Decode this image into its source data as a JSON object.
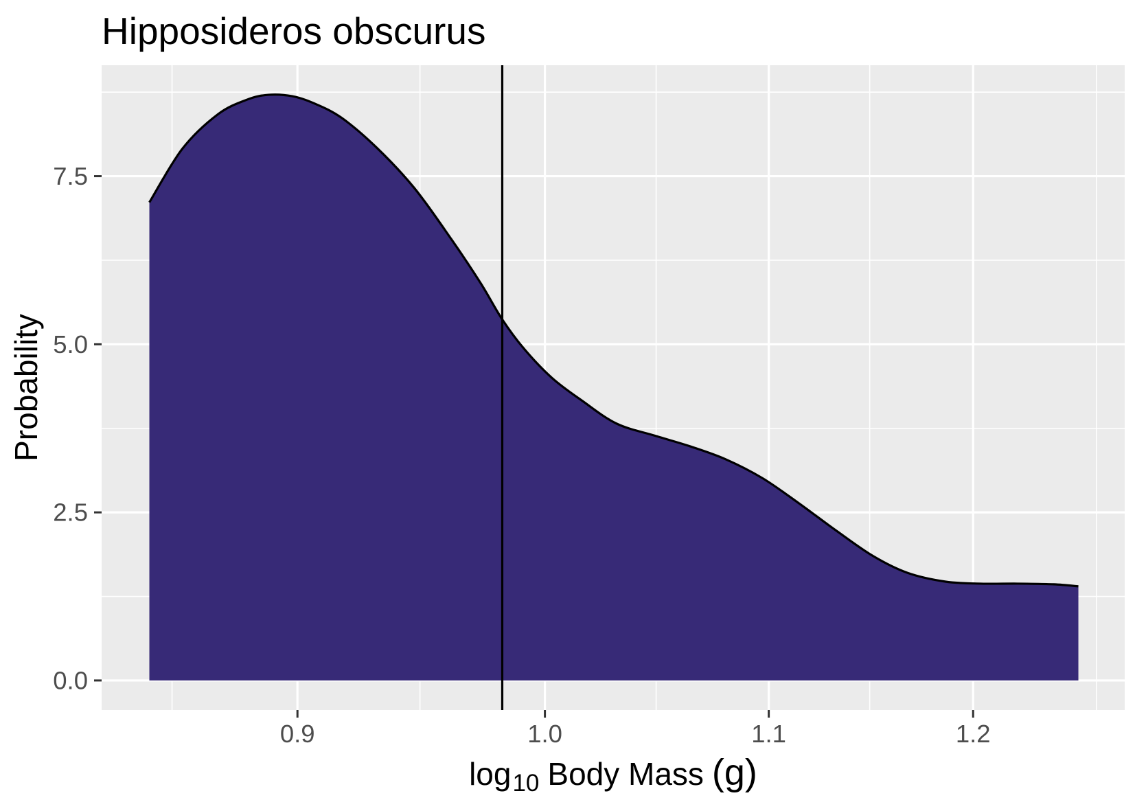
{
  "colors": {
    "background": "#FFFFFF",
    "panel": "#EBEBEB",
    "grid": "#FFFFFF",
    "area_fill": "#372A77",
    "curve": "#000000",
    "reference_line": "#000000",
    "tick_label": "#4D4D4D",
    "tick_mark": "#333333"
  },
  "chart_data": {
    "type": "area",
    "title": "Hipposideros obscurus",
    "xlabel": {
      "main": "log",
      "sub": "10",
      "name": "Body Mass",
      "unit": "(g)"
    },
    "ylabel": "Probability",
    "x_scale": "log10",
    "xlim": [
      0.828,
      1.28
    ],
    "ylim": [
      -0.44,
      9.15
    ],
    "x_ticks": [
      0.9,
      1.0,
      1.1,
      1.2
    ],
    "x_tick_labels": [
      "0.9",
      "1.0",
      "1.1",
      "1.2"
    ],
    "y_ticks": [
      0,
      2.5,
      5.0,
      7.5
    ],
    "y_tick_labels": [
      "0.0",
      "2.5",
      "5.0",
      "7.5"
    ],
    "grid": true,
    "legend": "none",
    "vline": 0.982,
    "series": [
      {
        "x": [
          0.845,
          0.857,
          0.87,
          0.881,
          0.889,
          0.898,
          0.906,
          0.917,
          0.931,
          0.946,
          0.961,
          0.973,
          0.982,
          0.991,
          1.003,
          1.016,
          1.031,
          1.048,
          1.064,
          1.08,
          1.097,
          1.114,
          1.132,
          1.15,
          1.167,
          1.186,
          1.204,
          1.223,
          1.242,
          1.255
        ],
        "y": [
          7.11,
          7.91,
          8.42,
          8.64,
          8.71,
          8.69,
          8.59,
          8.37,
          7.92,
          7.32,
          6.56,
          5.91,
          5.37,
          4.94,
          4.5,
          4.16,
          3.82,
          3.64,
          3.48,
          3.29,
          3.01,
          2.64,
          2.23,
          1.85,
          1.6,
          1.47,
          1.44,
          1.44,
          1.43,
          1.4
        ]
      }
    ]
  }
}
